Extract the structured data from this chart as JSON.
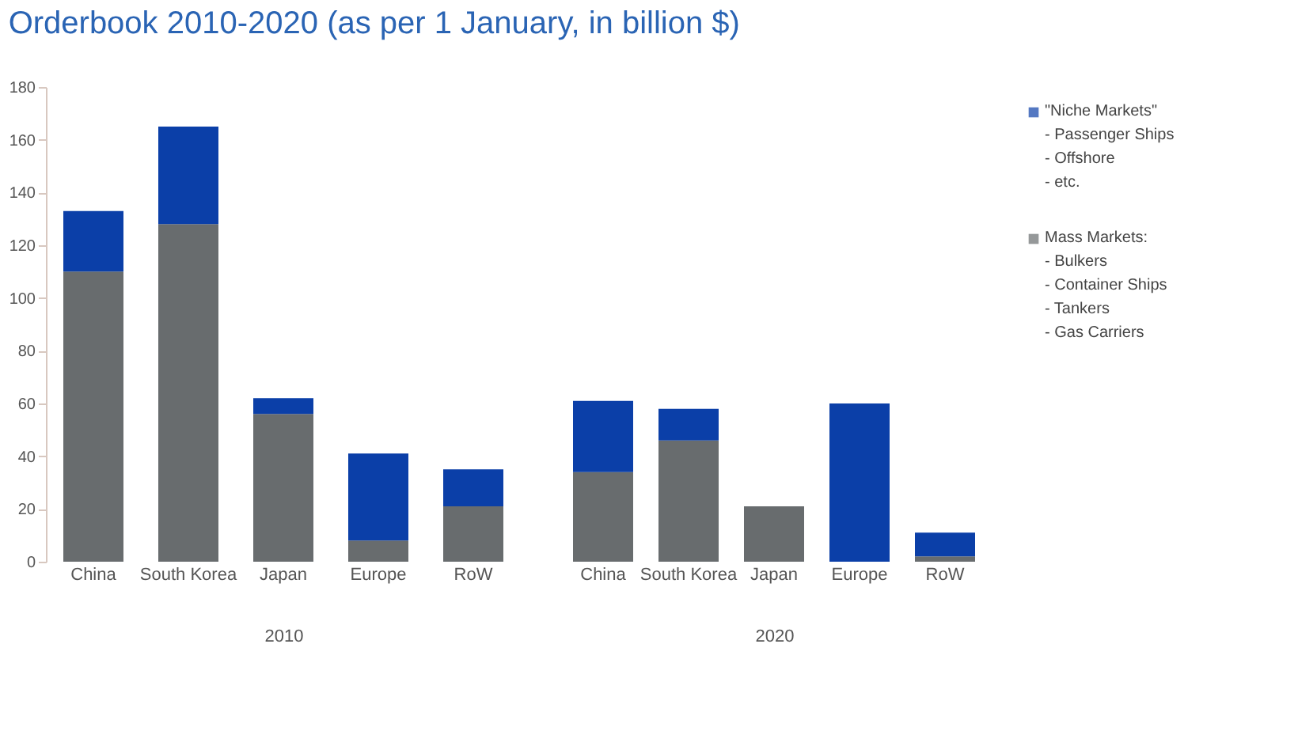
{
  "chart_data": [
    {
      "type": "bar",
      "title": "Orderbook 2010-2020 (as per 1 January, in billion $)",
      "xlabel": "2010",
      "categories": [
        "China",
        "South Korea",
        "Japan",
        "Europe",
        "RoW"
      ],
      "stacked": true,
      "ylim": [
        0,
        180
      ],
      "yticks": [
        0,
        20,
        40,
        60,
        80,
        100,
        120,
        140,
        160,
        180
      ],
      "legend": "right",
      "series": [
        {
          "name": "Mass Markets:\n- Bulkers\n- Container Ships\n- Tankers\n- Gas Carriers",
          "color": "#686c6e",
          "values": [
            110,
            128,
            56,
            8,
            21
          ]
        },
        {
          "name": "\"Niche Markets\"\n- Passenger Ships\n- Offshore\n- etc.",
          "color": "#0b3fa8",
          "values": [
            23,
            37,
            6,
            33,
            14
          ]
        }
      ]
    },
    {
      "type": "bar",
      "xlabel": "2020",
      "categories": [
        "China",
        "South Korea",
        "Japan",
        "Europe",
        "RoW"
      ],
      "stacked": true,
      "ylim": [
        0,
        180
      ],
      "yticks": [
        0,
        20,
        40,
        60,
        80,
        100,
        120,
        140,
        160,
        180
      ],
      "tick_labels": "x",
      "series": [
        {
          "color": "#686c6e",
          "values": [
            34,
            46,
            21,
            0,
            2
          ]
        },
        {
          "color": "#0b3fa8",
          "values": [
            27,
            12,
            0,
            60,
            9
          ]
        }
      ]
    }
  ]
}
